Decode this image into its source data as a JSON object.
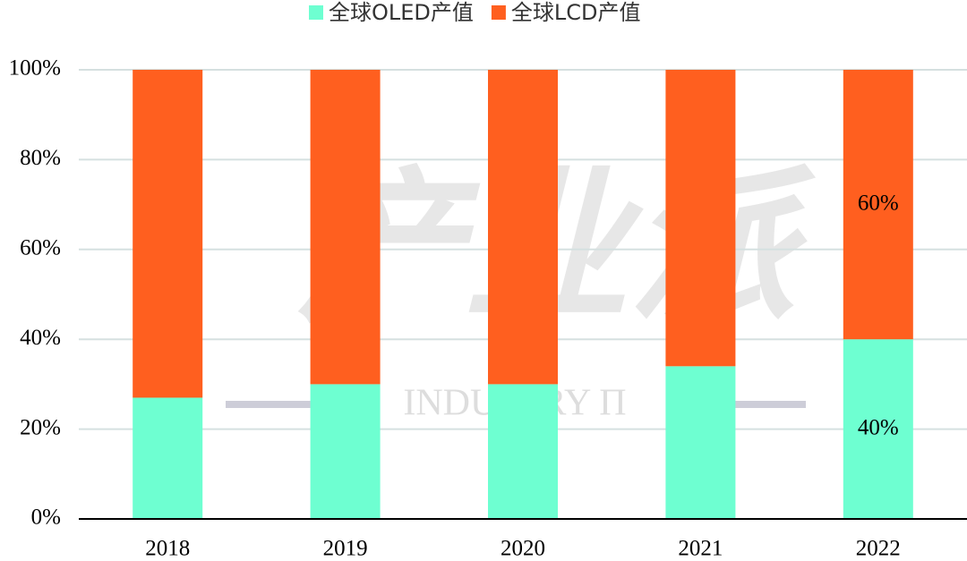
{
  "chart_data": {
    "type": "stacked_bar",
    "categories": [
      "2018",
      "2019",
      "2020",
      "2021",
      "2022"
    ],
    "series": [
      {
        "name": "全球OLED产值",
        "color": "#6effd1",
        "values": [
          27,
          30,
          30,
          34,
          40
        ],
        "value_labels": [
          null,
          null,
          null,
          null,
          "40%"
        ]
      },
      {
        "name": "全球LCD产值",
        "color": "#ff5f1f",
        "values": [
          73,
          70,
          70,
          66,
          60
        ],
        "value_labels": [
          null,
          null,
          null,
          null,
          "60%"
        ]
      }
    ],
    "ylim": [
      0,
      100
    ],
    "yticks": [
      {
        "value": 0,
        "label": "0%"
      },
      {
        "value": 20,
        "label": "20%"
      },
      {
        "value": 40,
        "label": "40%"
      },
      {
        "value": 60,
        "label": "60%"
      },
      {
        "value": 80,
        "label": "80%"
      },
      {
        "value": 100,
        "label": "100%"
      }
    ],
    "grid": true,
    "legend": "top",
    "watermark": [
      "产业派",
      "INDUSTRY Π"
    ]
  }
}
